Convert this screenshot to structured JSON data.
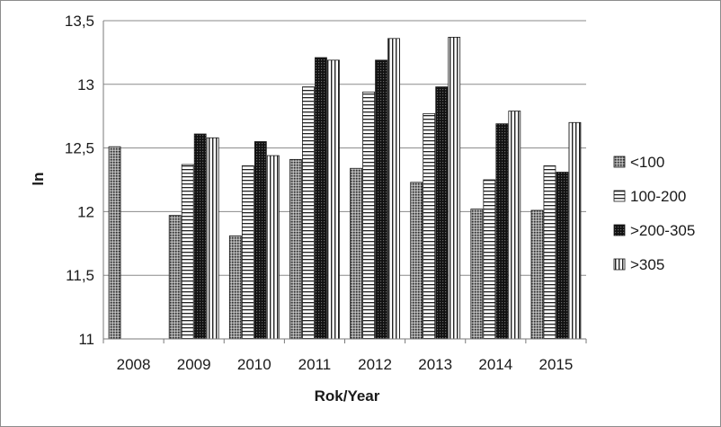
{
  "chart_data": {
    "type": "bar",
    "title": "",
    "xlabel": "Rok/Year",
    "ylabel": "ln",
    "ylim": [
      11,
      13.5
    ],
    "yticks": [
      "11",
      "11,5",
      "12",
      "12,5",
      "13",
      "13,5"
    ],
    "grid": true,
    "legend_position": "right",
    "categories": [
      "2008",
      "2009",
      "2010",
      "2011",
      "2012",
      "2013",
      "2014",
      "2015"
    ],
    "series": [
      {
        "name": "<100",
        "pattern": "dotted-grey",
        "values": [
          12.51,
          11.97,
          11.81,
          12.41,
          12.34,
          12.23,
          12.02,
          12.01
        ]
      },
      {
        "name": "100-200",
        "pattern": "horizontal-lines",
        "values": [
          null,
          12.37,
          12.36,
          12.98,
          12.94,
          12.77,
          12.25,
          12.36
        ]
      },
      {
        "name": ">200-305",
        "pattern": "dark-checker",
        "values": [
          null,
          12.61,
          12.55,
          13.21,
          13.19,
          12.98,
          12.69,
          12.31
        ]
      },
      {
        "name": ">305",
        "pattern": "vertical-lines",
        "values": [
          null,
          12.58,
          12.44,
          13.19,
          13.36,
          13.37,
          12.79,
          12.7
        ]
      }
    ]
  }
}
